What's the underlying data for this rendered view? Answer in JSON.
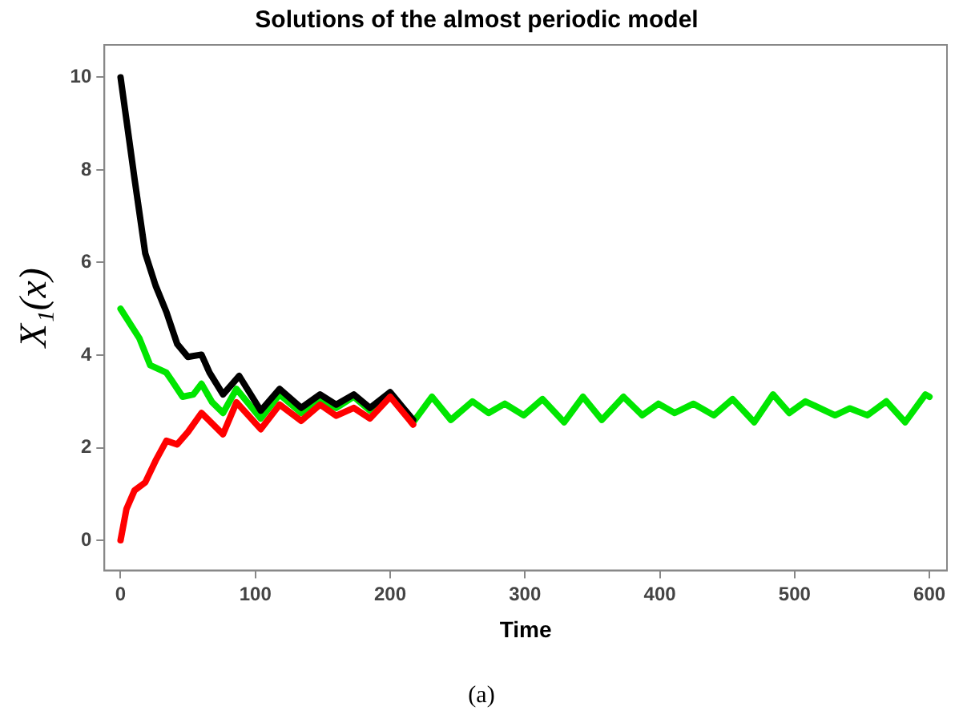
{
  "chart_data": {
    "type": "line",
    "title": "Solutions of the almost periodic model",
    "xlabel": "Time",
    "ylabel": "X₁(x)",
    "annotations": [
      "(a)"
    ],
    "xlim": [
      -12,
      613
    ],
    "xticks": [
      0,
      100,
      200,
      300,
      400,
      500,
      600
    ],
    "ylim": [
      -0.65,
      10.7
    ],
    "yticks": [
      0,
      2,
      4,
      6,
      8,
      10
    ],
    "grid": false,
    "legend": false,
    "marker": "none",
    "line_style": "solid",
    "series": [
      {
        "color": "#ff0000",
        "x": [
          0,
          4.4,
          10.4,
          18.3,
          26,
          34,
          42,
          50,
          60,
          76,
          86,
          104,
          118,
          134,
          148,
          160,
          173,
          185,
          200,
          217
        ],
        "values": [
          0,
          0.68,
          1.08,
          1.25,
          1.72,
          2.15,
          2.07,
          2.34,
          2.75,
          2.29,
          2.98,
          2.4,
          2.93,
          2.58,
          2.93,
          2.69,
          2.86,
          2.63,
          3.1,
          2.5
        ]
      },
      {
        "color": "#000000",
        "x": [
          0,
          4.4,
          10.4,
          18.3,
          26,
          34,
          42,
          50,
          60,
          66,
          76,
          88,
          104,
          118,
          134,
          148,
          160,
          173,
          185,
          200,
          217
        ],
        "values": [
          10,
          9.07,
          7.8,
          6.2,
          5.5,
          4.93,
          4.24,
          3.96,
          4.01,
          3.62,
          3.15,
          3.55,
          2.8,
          3.27,
          2.86,
          3.15,
          2.93,
          3.15,
          2.86,
          3.2,
          2.6
        ]
      },
      {
        "color": "#00e600",
        "x": [
          0,
          14,
          22,
          34,
          38,
          46,
          54,
          60,
          68,
          76,
          86,
          104,
          118,
          134,
          148,
          160,
          173,
          185,
          200,
          217,
          231,
          245,
          261,
          273,
          285,
          299,
          313,
          329,
          343,
          357,
          373,
          387,
          399,
          411,
          425,
          440,
          454,
          470,
          484,
          496,
          508,
          530,
          541,
          554,
          568,
          582,
          597,
          600
        ],
        "values": [
          5,
          4.36,
          3.78,
          3.62,
          3.45,
          3.1,
          3.15,
          3.38,
          2.98,
          2.75,
          3.27,
          2.63,
          3.15,
          2.75,
          3.03,
          2.86,
          3.1,
          2.8,
          3.15,
          2.55,
          3.1,
          2.6,
          3.0,
          2.75,
          2.95,
          2.7,
          3.05,
          2.55,
          3.1,
          2.6,
          3.1,
          2.7,
          2.95,
          2.75,
          2.95,
          2.7,
          3.05,
          2.55,
          3.15,
          2.75,
          3.0,
          2.7,
          2.85,
          2.7,
          3.0,
          2.55,
          3.15,
          3.1
        ]
      }
    ]
  }
}
